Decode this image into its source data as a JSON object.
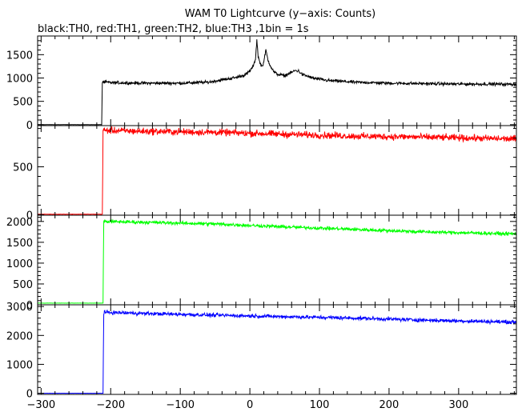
{
  "chart_data": {
    "type": "line",
    "title": "WAM T0 Lightcurve (y−axis: Counts)",
    "subtitle": "black:TH0, red:TH1, green:TH2, blue:TH3 ,1bin = 1s",
    "xlabel": "",
    "xlim": [
      -305,
      383
    ],
    "x_ticks": [
      -300,
      -200,
      -100,
      0,
      100,
      200,
      300
    ],
    "x_tick_labels": [
      "−300",
      "−200",
      "−100",
      "0",
      "100",
      "200",
      "300"
    ],
    "grid": false,
    "panels": [
      {
        "series_name": "TH0",
        "color": "#000000",
        "ylim": [
          -20,
          1900
        ],
        "y_ticks": [
          0,
          500,
          1000,
          1500
        ],
        "trace": [
          [
            -305,
            0
          ],
          [
            -213,
            0
          ],
          [
            -212,
            920
          ],
          [
            -200,
            900
          ],
          [
            -150,
            890
          ],
          [
            -100,
            890
          ],
          [
            -60,
            910
          ],
          [
            -40,
            960
          ],
          [
            -20,
            1010
          ],
          [
            -5,
            1080
          ],
          [
            0,
            1150
          ],
          [
            5,
            1260
          ],
          [
            8,
            1400
          ],
          [
            10,
            1820
          ],
          [
            12,
            1450
          ],
          [
            15,
            1300
          ],
          [
            18,
            1250
          ],
          [
            20,
            1350
          ],
          [
            23,
            1600
          ],
          [
            26,
            1380
          ],
          [
            30,
            1250
          ],
          [
            35,
            1120
          ],
          [
            40,
            1080
          ],
          [
            50,
            1050
          ],
          [
            60,
            1120
          ],
          [
            65,
            1160
          ],
          [
            70,
            1150
          ],
          [
            75,
            1080
          ],
          [
            90,
            1000
          ],
          [
            110,
            950
          ],
          [
            150,
            910
          ],
          [
            200,
            890
          ],
          [
            250,
            880
          ],
          [
            300,
            870
          ],
          [
            340,
            870
          ],
          [
            383,
            865
          ]
        ],
        "noise": 28
      },
      {
        "series_name": "TH1",
        "color": "#ff0000",
        "ylim": [
          -5,
          930
        ],
        "y_ticks": [
          0,
          500
        ],
        "trace": [
          [
            -305,
            5
          ],
          [
            -212,
            5
          ],
          [
            -211,
            880
          ],
          [
            -150,
            870
          ],
          [
            -50,
            860
          ],
          [
            50,
            840
          ],
          [
            150,
            820
          ],
          [
            250,
            810
          ],
          [
            383,
            790
          ]
        ],
        "noise": 30
      },
      {
        "series_name": "TH2",
        "color": "#00ff00",
        "ylim": [
          0,
          2150
        ],
        "y_ticks": [
          0,
          500,
          1000,
          1500,
          2000
        ],
        "trace": [
          [
            -305,
            40
          ],
          [
            -211,
            40
          ],
          [
            -210,
            2000
          ],
          [
            -150,
            1980
          ],
          [
            -50,
            1940
          ],
          [
            50,
            1870
          ],
          [
            150,
            1810
          ],
          [
            250,
            1750
          ],
          [
            383,
            1700
          ]
        ],
        "noise": 35
      },
      {
        "series_name": "TH3",
        "color": "#0000ff",
        "ylim": [
          -40,
          3060
        ],
        "y_ticks": [
          0,
          1000,
          2000,
          3000
        ],
        "trace": [
          [
            -305,
            0
          ],
          [
            -211,
            0
          ],
          [
            -210,
            2800
          ],
          [
            -150,
            2760
          ],
          [
            -50,
            2700
          ],
          [
            50,
            2650
          ],
          [
            150,
            2600
          ],
          [
            250,
            2530
          ],
          [
            383,
            2460
          ]
        ],
        "noise": 55
      }
    ]
  }
}
